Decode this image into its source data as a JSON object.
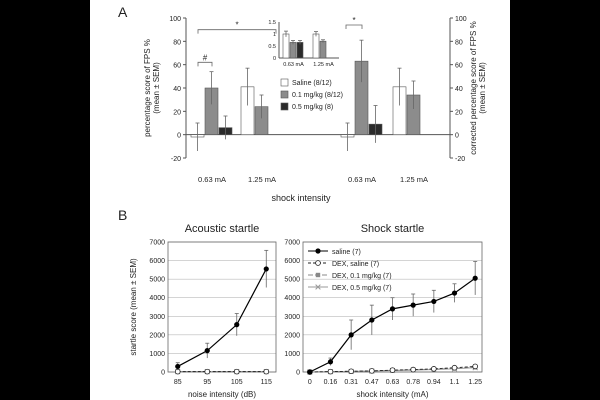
{
  "panel_labels": {
    "a": "A",
    "b": "B"
  },
  "chart_data": [
    {
      "id": "A-left",
      "type": "bar",
      "ylabel": "percentage score of FPS %",
      "ylabel2": "(mean ± SEM)",
      "ylim": [
        -20,
        100
      ],
      "yticks": [
        -20,
        0,
        20,
        40,
        60,
        80,
        100
      ],
      "categories": [
        "0.63 mA",
        "1.25 mA"
      ],
      "series": [
        {
          "name": "Saline (8/12)",
          "color": "#ffffff",
          "values": [
            -2,
            41
          ],
          "errors": [
            12,
            16
          ]
        },
        {
          "name": "0.1 mg/kg (8/12)",
          "color": "#8c8c8c",
          "values": [
            40,
            24
          ],
          "errors": [
            14,
            10
          ]
        },
        {
          "name": "0.5 mg/kg (8)",
          "color": "#2b2b2b",
          "values": [
            6,
            null
          ],
          "errors": [
            10,
            null
          ]
        }
      ],
      "annotations": [
        {
          "text": "#",
          "between": [
            0,
            1
          ],
          "level": 62
        },
        {
          "text": "*",
          "between": [
            0,
            3
          ],
          "level": 90
        }
      ]
    },
    {
      "id": "A-right",
      "type": "bar",
      "ylabel": "corrected percentage score of FPS %",
      "ylabel2": "(mean ± SEM)",
      "ylim": [
        -20,
        100
      ],
      "yticks": [
        -20,
        0,
        20,
        40,
        60,
        80,
        100
      ],
      "categories": [
        "0.63 mA",
        "1.25 mA"
      ],
      "series": [
        {
          "name": "Saline (8/12)",
          "color": "#ffffff",
          "values": [
            -2,
            41
          ],
          "errors": [
            12,
            16
          ]
        },
        {
          "name": "0.1 mg/kg (8/12)",
          "color": "#8c8c8c",
          "values": [
            63,
            34
          ],
          "errors": [
            18,
            12
          ]
        },
        {
          "name": "0.5 mg/kg (8)",
          "color": "#2b2b2b",
          "values": [
            9,
            null
          ],
          "errors": [
            16,
            null
          ]
        }
      ],
      "annotations": [
        {
          "text": "*",
          "between": [
            0,
            1
          ],
          "level": 104
        }
      ]
    },
    {
      "id": "A-inset",
      "type": "bar",
      "ylim": [
        0,
        1.5
      ],
      "yticks": [
        0,
        0.5,
        1,
        1.5
      ],
      "yticklabels": [
        "0",
        "0.5",
        "1",
        "1.5"
      ],
      "categories": [
        "0.63 mA",
        "1.25 mA"
      ],
      "series": [
        {
          "name": "Saline (8/12)",
          "color": "#ffffff",
          "values": [
            1.0,
            1.0
          ],
          "errors": [
            0.12,
            0.1
          ]
        },
        {
          "name": "0.1 mg/kg (8/12)",
          "color": "#8c8c8c",
          "values": [
            0.65,
            0.7
          ],
          "errors": [
            0.08,
            0.06
          ]
        },
        {
          "name": "0.5 mg/kg (8)",
          "color": "#2b2b2b",
          "values": [
            0.65,
            null
          ],
          "errors": [
            0.08,
            null
          ]
        }
      ]
    },
    {
      "id": "B-left",
      "type": "line",
      "title": "Acoustic startle",
      "xlabel": "noise intensity (dB)",
      "ylabel": "startle score (mean ± SEM)",
      "categories": [
        "85",
        "95",
        "105",
        "115"
      ],
      "ylim": [
        0,
        7000
      ],
      "yticks": [
        0,
        1000,
        2000,
        3000,
        4000,
        5000,
        6000,
        7000
      ],
      "series": [
        {
          "name": "saline (7)",
          "color": "#000000",
          "dash": "",
          "marker": "circle",
          "values": [
            300,
            1150,
            2550,
            5550
          ],
          "errors": [
            200,
            400,
            600,
            1000
          ]
        },
        {
          "name": "DEX, saline (7)",
          "color": "#222222",
          "dash": "3,2",
          "marker": "open-circle",
          "values": [
            20,
            20,
            20,
            20
          ],
          "errors": [
            10,
            10,
            10,
            10
          ]
        },
        {
          "name": "DEX, 0.1 mg/kg (7)",
          "color": "#888888",
          "dash": "5,2",
          "marker": "square",
          "values": [
            20,
            20,
            20,
            20
          ],
          "errors": [
            10,
            10,
            10,
            10
          ]
        },
        {
          "name": "DEX, 0.5 mg/kg (7)",
          "color": "#999999",
          "dash": "",
          "marker": "x",
          "values": [
            20,
            20,
            20,
            20
          ],
          "errors": [
            10,
            10,
            10,
            10
          ]
        }
      ]
    },
    {
      "id": "B-right",
      "type": "line",
      "title": "Shock startle",
      "xlabel": "shock intensity (mA)",
      "categories": [
        "0",
        "0.16",
        "0.31",
        "0.47",
        "0.63",
        "0.78",
        "0.94",
        "1.1",
        "1.25"
      ],
      "ylim": [
        0,
        7000
      ],
      "yticks": [
        0,
        1000,
        2000,
        3000,
        4000,
        5000,
        6000,
        7000
      ],
      "legend_position": "top-left",
      "series": [
        {
          "name": "saline (7)",
          "color": "#000000",
          "dash": "",
          "marker": "circle",
          "values": [
            0,
            550,
            2000,
            2800,
            3400,
            3600,
            3800,
            4250,
            5050
          ],
          "errors": [
            0,
            200,
            800,
            800,
            600,
            600,
            600,
            500,
            900
          ]
        },
        {
          "name": "DEX, saline (7)",
          "color": "#222222",
          "dash": "3,2",
          "marker": "open-circle",
          "values": [
            0,
            20,
            40,
            60,
            100,
            130,
            170,
            230,
            300
          ],
          "errors": [
            0,
            10,
            20,
            30,
            40,
            50,
            60,
            80,
            100
          ]
        },
        {
          "name": "DEX, 0.1 mg/kg (7)",
          "color": "#888888",
          "dash": "5,2",
          "marker": "square",
          "values": [
            0,
            20,
            40,
            60,
            90,
            120,
            150,
            200,
            260
          ],
          "errors": [
            0,
            10,
            20,
            30,
            40,
            50,
            60,
            80,
            90
          ]
        },
        {
          "name": "DEX, 0.5 mg/kg (7)",
          "color": "#999999",
          "dash": "",
          "marker": "x",
          "values": [
            0,
            20,
            30,
            50,
            80,
            100,
            130,
            170,
            230
          ],
          "errors": [
            0,
            10,
            20,
            30,
            40,
            50,
            60,
            70,
            80
          ]
        }
      ]
    }
  ],
  "shared_xlabel_A": "shock intensity"
}
